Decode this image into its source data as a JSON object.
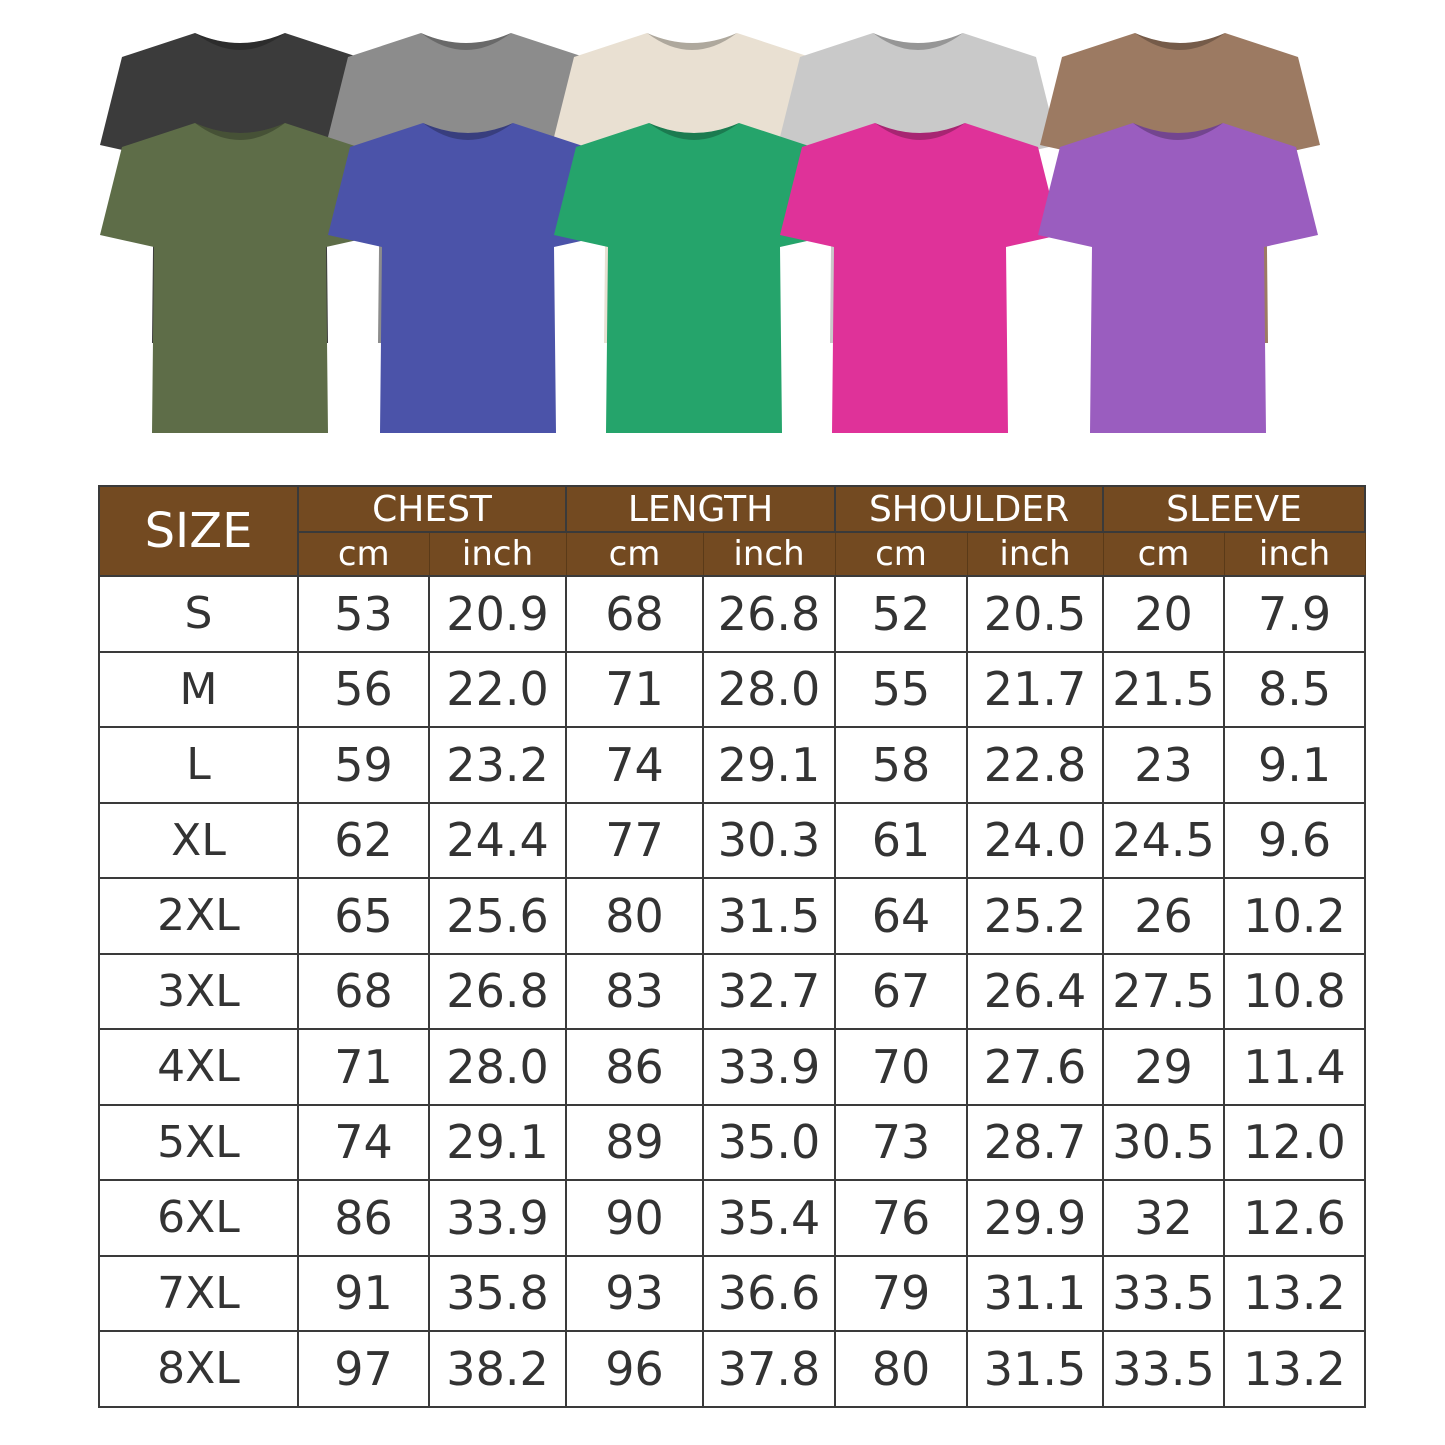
{
  "shirts": {
    "back_row": [
      {
        "color_name": "black",
        "hex": "#3b3b3b"
      },
      {
        "color_name": "grey",
        "hex": "#8c8c8c"
      },
      {
        "color_name": "cream",
        "hex": "#e9e0d2"
      },
      {
        "color_name": "light-grey",
        "hex": "#c9c9c9"
      },
      {
        "color_name": "brown",
        "hex": "#9c7a62"
      }
    ],
    "front_row": [
      {
        "color_name": "olive",
        "hex": "#5e6d48"
      },
      {
        "color_name": "blue",
        "hex": "#4b53a9"
      },
      {
        "color_name": "green",
        "hex": "#25a46b"
      },
      {
        "color_name": "pink",
        "hex": "#df3299"
      },
      {
        "color_name": "purple",
        "hex": "#9a5dbf"
      }
    ]
  },
  "table": {
    "header_color": "#734a21",
    "size_label": "SIZE",
    "groups": [
      "CHEST",
      "LENGTH",
      "SHOULDER",
      "SLEEVE"
    ],
    "units": [
      "cm",
      "inch"
    ],
    "rows": [
      [
        "S",
        "53",
        "20.9",
        "68",
        "26.8",
        "52",
        "20.5",
        "20",
        "7.9"
      ],
      [
        "M",
        "56",
        "22.0",
        "71",
        "28.0",
        "55",
        "21.7",
        "21.5",
        "8.5"
      ],
      [
        "L",
        "59",
        "23.2",
        "74",
        "29.1",
        "58",
        "22.8",
        "23",
        "9.1"
      ],
      [
        "XL",
        "62",
        "24.4",
        "77",
        "30.3",
        "61",
        "24.0",
        "24.5",
        "9.6"
      ],
      [
        "2XL",
        "65",
        "25.6",
        "80",
        "31.5",
        "64",
        "25.2",
        "26",
        "10.2"
      ],
      [
        "3XL",
        "68",
        "26.8",
        "83",
        "32.7",
        "67",
        "26.4",
        "27.5",
        "10.8"
      ],
      [
        "4XL",
        "71",
        "28.0",
        "86",
        "33.9",
        "70",
        "27.6",
        "29",
        "11.4"
      ],
      [
        "5XL",
        "74",
        "29.1",
        "89",
        "35.0",
        "73",
        "28.7",
        "30.5",
        "12.0"
      ],
      [
        "6XL",
        "86",
        "33.9",
        "90",
        "35.4",
        "76",
        "29.9",
        "32",
        "12.6"
      ],
      [
        "7XL",
        "91",
        "35.8",
        "93",
        "36.6",
        "79",
        "31.1",
        "33.5",
        "13.2"
      ],
      [
        "8XL",
        "97",
        "38.2",
        "96",
        "37.8",
        "80",
        "31.5",
        "33.5",
        "13.2"
      ]
    ]
  }
}
